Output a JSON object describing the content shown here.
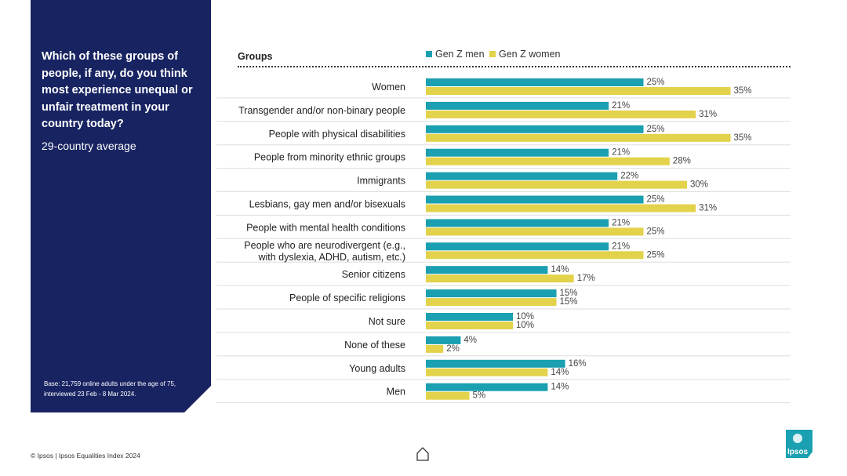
{
  "panel": {
    "question": "Which of these groups of people, if any, do you think most experience unequal or unfair treatment in your country today?",
    "subtitle": "29-country average",
    "base_note": "Base: 21,759 online adults under the age of 75, interviewed 23 Feb - 8 Mar 2024."
  },
  "footer": {
    "copyright": "© Ipsos | Ipsos Equalities Index 2024"
  },
  "logo": {
    "text": "Ipsos"
  },
  "colors": {
    "panel": "#182462",
    "men": "#1aa0b0",
    "women": "#e3d24b"
  },
  "chart_data": {
    "type": "bar",
    "orientation": "horizontal",
    "title": "Which of these groups of people, if any, do you think most experience unequal or unfair treatment in your country today?",
    "subtitle": "29-country average",
    "category_header": "Groups",
    "categories": [
      [
        "Women"
      ],
      [
        "Transgender and/or non-binary people"
      ],
      [
        "People with physical disabilities"
      ],
      [
        "People from minority ethnic groups"
      ],
      [
        "Immigrants"
      ],
      [
        "Lesbians, gay men and/or bisexuals"
      ],
      [
        "People with mental health conditions"
      ],
      [
        "People who are neurodivergent (e.g.,",
        "with dyslexia, ADHD, autism, etc.)"
      ],
      [
        "Senior citizens"
      ],
      [
        "People of specific religions"
      ],
      [
        "Not sure"
      ],
      [
        "None of these"
      ],
      [
        "Young adults"
      ],
      [
        "Men"
      ]
    ],
    "series": [
      {
        "name": "Gen Z men",
        "values": [
          25,
          21,
          25,
          21,
          22,
          25,
          21,
          21,
          14,
          15,
          10,
          4,
          16,
          14
        ]
      },
      {
        "name": "Gen Z women",
        "values": [
          35,
          31,
          35,
          28,
          30,
          31,
          25,
          25,
          17,
          15,
          10,
          2,
          14,
          5
        ]
      }
    ],
    "value_suffix": "%",
    "xlim": [
      0,
      40
    ],
    "legend_position": "top"
  }
}
